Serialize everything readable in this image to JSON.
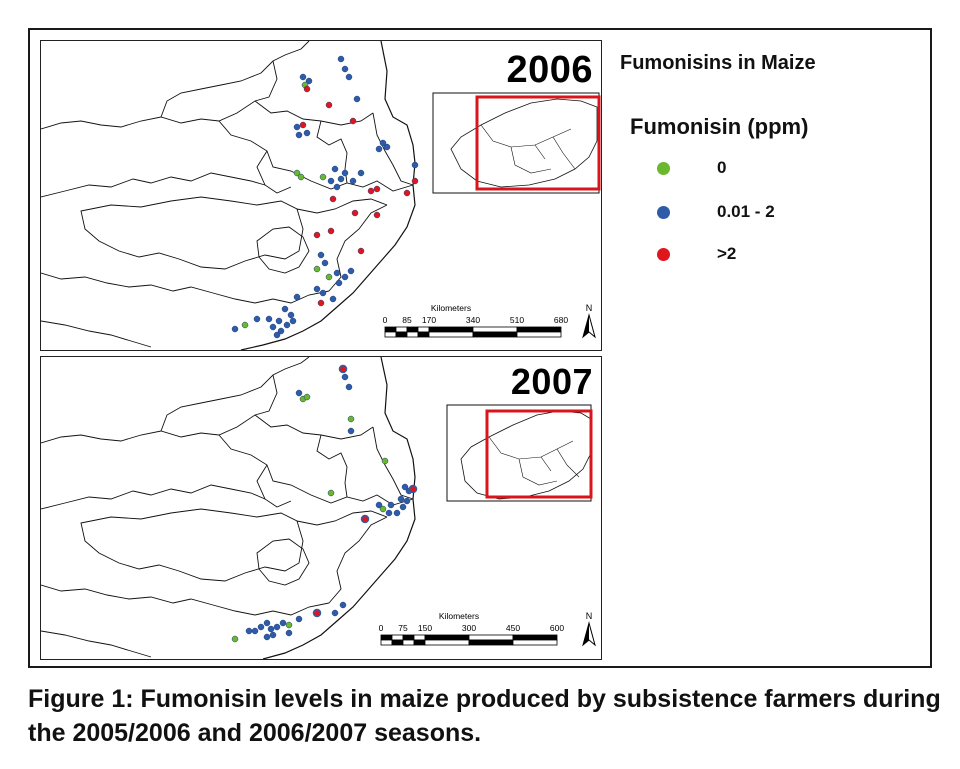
{
  "legend": {
    "title": "Fumonisins in Maize",
    "subtitle": "Fumonisin (ppm)",
    "items": [
      {
        "label": "0",
        "color": "#6ab82e"
      },
      {
        "label": "0.01 - 2",
        "color": "#2e5ca8"
      },
      {
        "label": ">2",
        "color": "#e0161f"
      }
    ]
  },
  "maps": [
    {
      "year": "2006",
      "scalebar": {
        "unit": "Kilometers",
        "ticks": [
          "0",
          "85",
          "170",
          "340",
          "510",
          "680"
        ]
      },
      "north_label": "N"
    },
    {
      "year": "2007",
      "scalebar": {
        "unit": "Kilometers",
        "ticks": [
          "0",
          "75",
          "150",
          "300",
          "450",
          "600"
        ]
      },
      "north_label": "N"
    }
  ],
  "caption": "Figure 1: Fumonisin levels in maize produced by subsistence farmers during the 2005/2006 and 2006/2007 seasons."
}
